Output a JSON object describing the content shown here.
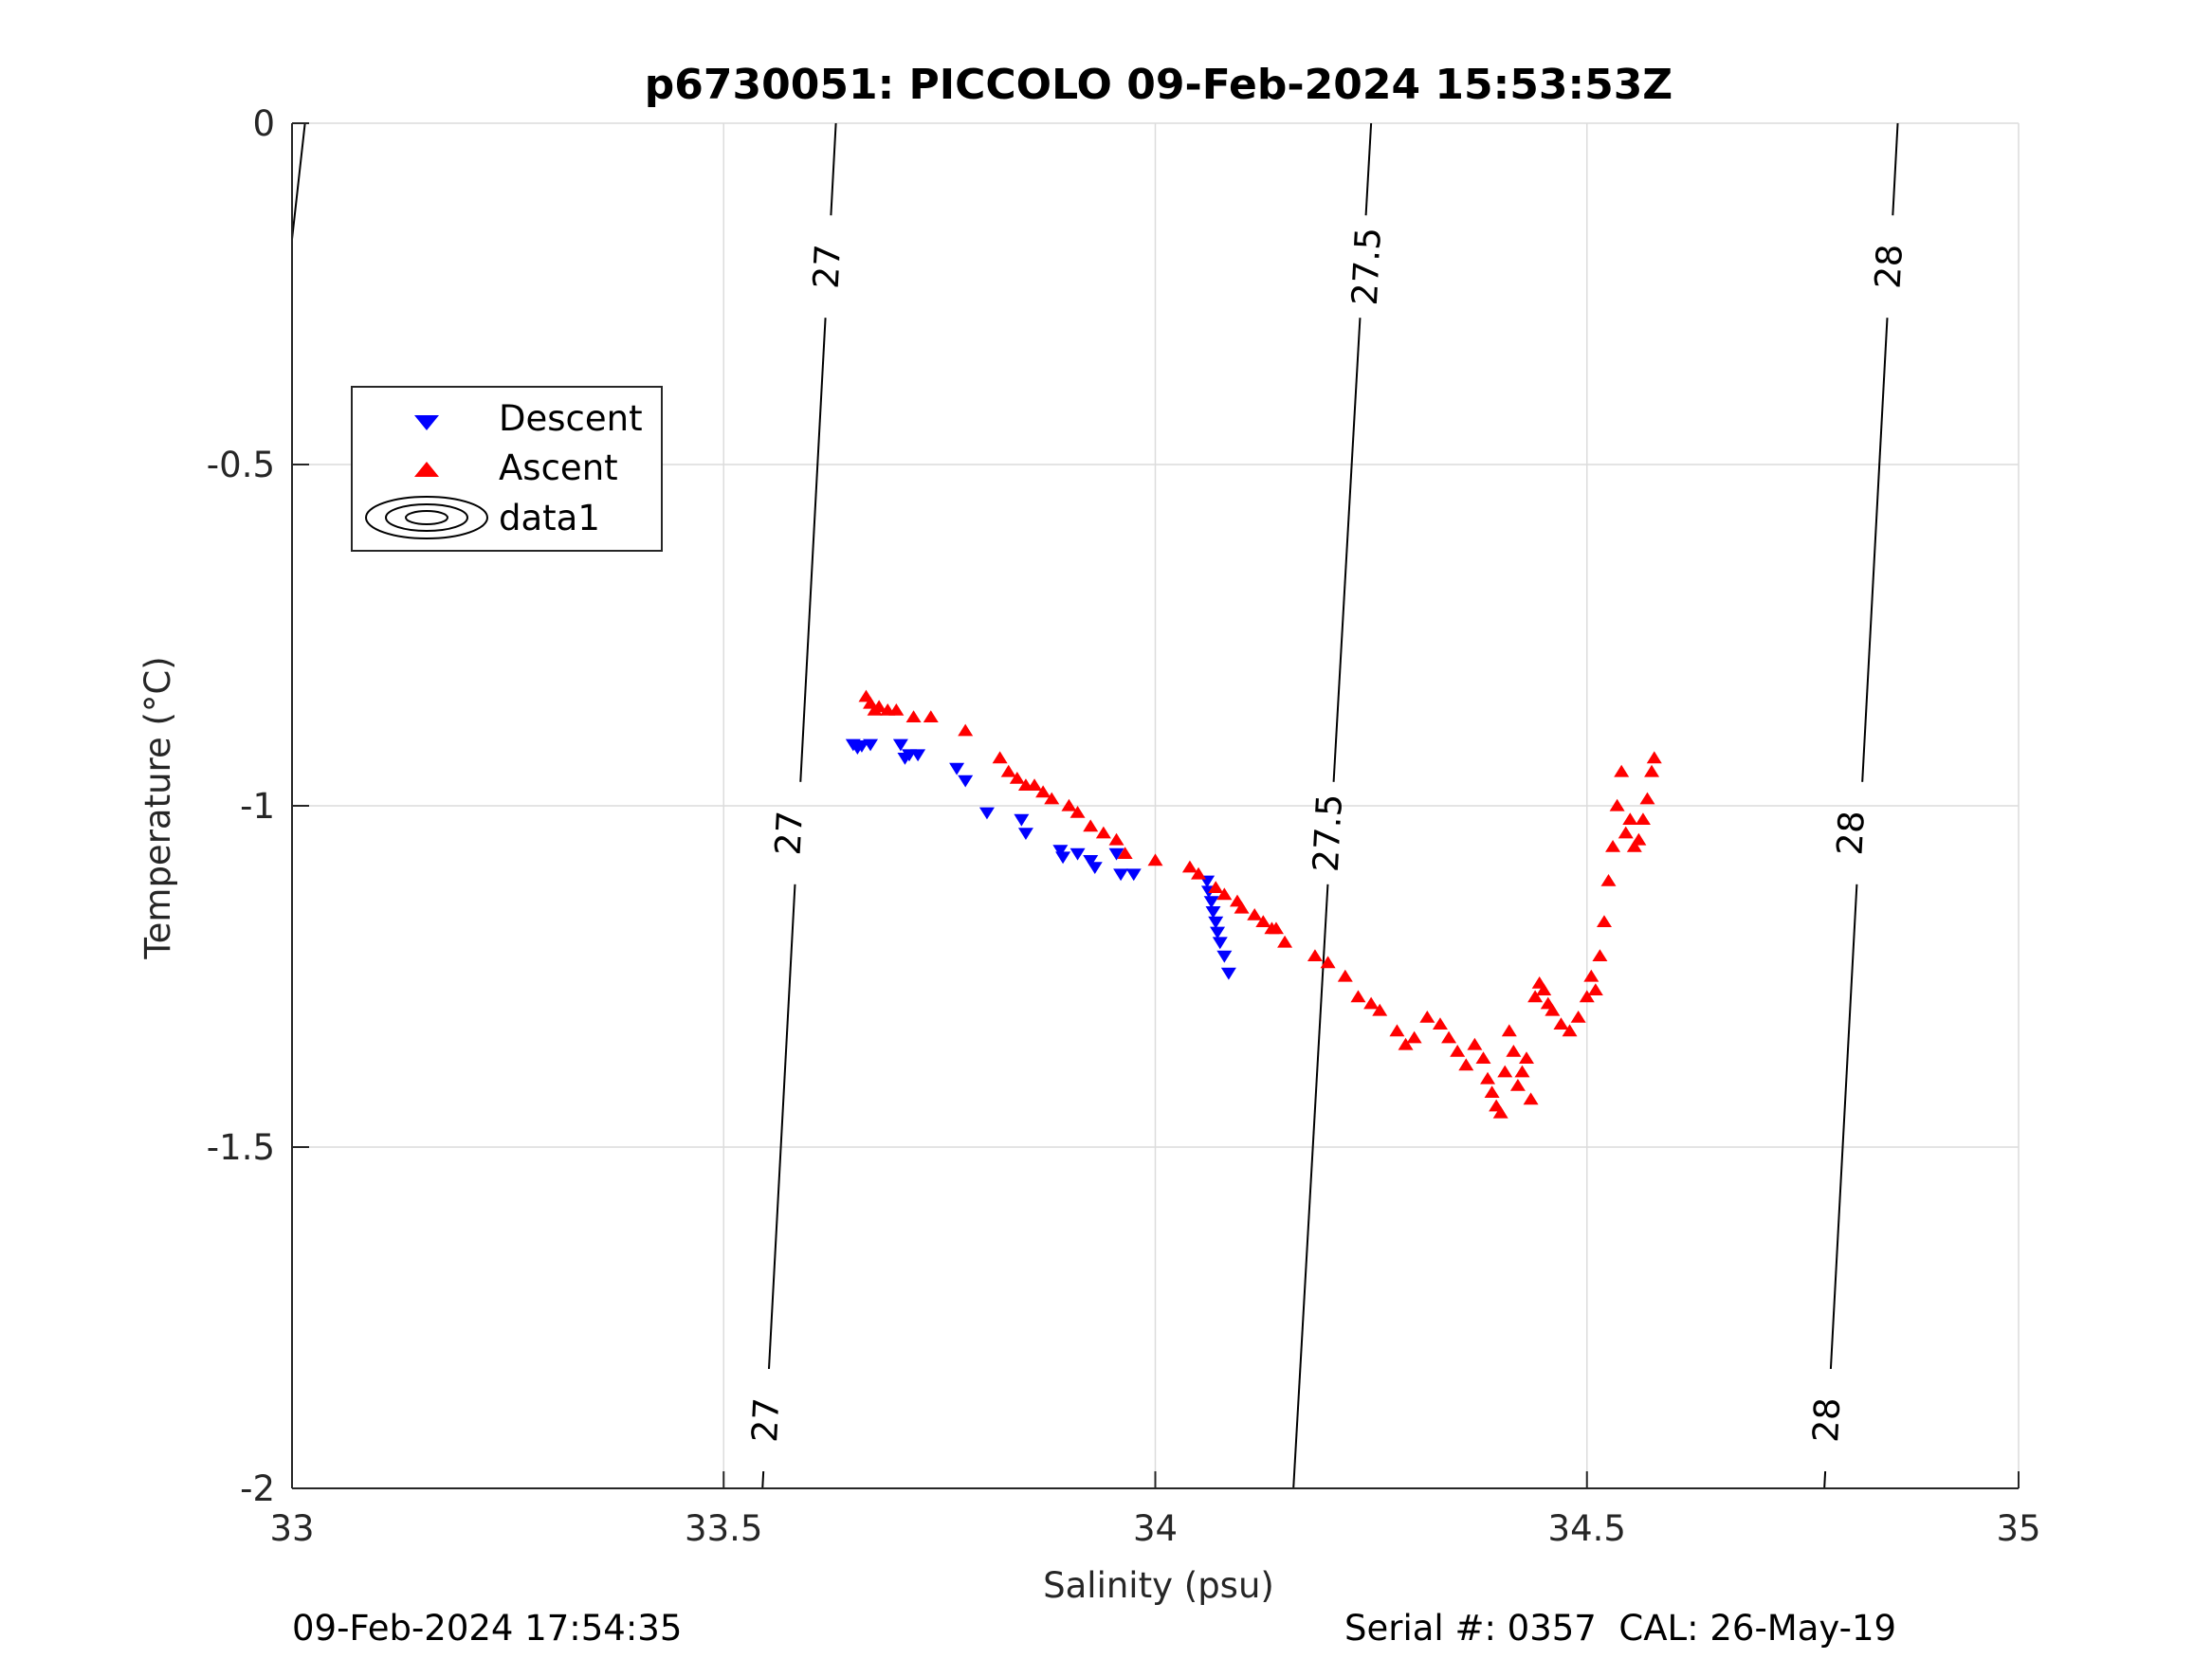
{
  "chart_data": {
    "type": "scatter",
    "title": "p6730051: PICCOLO 09-Feb-2024 15:53:53Z",
    "xlabel": "Salinity (psu)",
    "ylabel": "Temperature (°C)",
    "xlim": [
      33,
      35
    ],
    "ylim": [
      -2,
      0
    ],
    "xticks": [
      "33",
      "33.5",
      "34",
      "34.5",
      "35"
    ],
    "xtick_values": [
      33,
      33.5,
      34,
      34.5,
      35
    ],
    "yticks": [
      "0",
      "-0.5",
      "-1",
      "-1.5",
      "-2"
    ],
    "ytick_values": [
      0,
      -0.5,
      -1,
      -1.5,
      -2
    ],
    "grid": true,
    "legend_position": "upper-left",
    "series": [
      {
        "name": "Descent",
        "marker": "triangle-down",
        "color": "#0000ff",
        "x": [
          33.65,
          33.655,
          33.66,
          33.67,
          33.705,
          33.71,
          33.715,
          33.725,
          33.77,
          33.78,
          33.805,
          33.845,
          33.85,
          33.89,
          33.893,
          33.91,
          33.925,
          33.93,
          33.955,
          33.96,
          33.975,
          34.06,
          34.062,
          34.065,
          34.067,
          34.07,
          34.072,
          34.075,
          34.08,
          34.085
        ],
        "y": [
          -0.91,
          -0.915,
          -0.912,
          -0.91,
          -0.91,
          -0.93,
          -0.925,
          -0.925,
          -0.945,
          -0.963,
          -1.01,
          -1.02,
          -1.04,
          -1.065,
          -1.075,
          -1.07,
          -1.08,
          -1.09,
          -1.07,
          -1.1,
          -1.1,
          -1.11,
          -1.125,
          -1.14,
          -1.155,
          -1.17,
          -1.185,
          -1.2,
          -1.22,
          -1.245
        ]
      },
      {
        "name": "Ascent",
        "marker": "triangle-up",
        "color": "#ff0000",
        "x": [
          33.665,
          33.67,
          33.675,
          33.68,
          33.69,
          33.7,
          33.72,
          33.74,
          33.78,
          33.82,
          33.83,
          33.84,
          33.85,
          33.86,
          33.87,
          33.88,
          33.9,
          33.91,
          33.925,
          33.94,
          33.955,
          33.965,
          34.0,
          34.04,
          34.05,
          34.07,
          34.08,
          34.095,
          34.1,
          34.115,
          34.125,
          34.135,
          34.14,
          34.15,
          34.185,
          34.2,
          34.22,
          34.235,
          34.25,
          34.26,
          34.28,
          34.29,
          34.3,
          34.315,
          34.33,
          34.34,
          34.35,
          34.36,
          34.37,
          34.38,
          34.385,
          34.39,
          34.395,
          34.4,
          34.405,
          34.41,
          34.415,
          34.42,
          34.425,
          34.43,
          34.435,
          34.44,
          34.445,
          34.45,
          34.455,
          34.46,
          34.47,
          34.48,
          34.49,
          34.5,
          34.505,
          34.51,
          34.515,
          34.52,
          34.525,
          34.53,
          34.535,
          34.54,
          34.545,
          34.55,
          34.555,
          34.56,
          34.565,
          34.57,
          34.575,
          34.578
        ],
        "y": [
          -0.84,
          -0.85,
          -0.86,
          -0.855,
          -0.86,
          -0.86,
          -0.87,
          -0.87,
          -0.89,
          -0.93,
          -0.95,
          -0.96,
          -0.97,
          -0.97,
          -0.98,
          -0.99,
          -1.0,
          -1.01,
          -1.03,
          -1.04,
          -1.05,
          -1.07,
          -1.08,
          -1.09,
          -1.1,
          -1.12,
          -1.13,
          -1.14,
          -1.15,
          -1.16,
          -1.17,
          -1.18,
          -1.18,
          -1.2,
          -1.22,
          -1.23,
          -1.25,
          -1.28,
          -1.29,
          -1.3,
          -1.33,
          -1.35,
          -1.34,
          -1.31,
          -1.32,
          -1.34,
          -1.36,
          -1.38,
          -1.35,
          -1.37,
          -1.4,
          -1.42,
          -1.44,
          -1.45,
          -1.39,
          -1.33,
          -1.36,
          -1.41,
          -1.39,
          -1.37,
          -1.43,
          -1.28,
          -1.26,
          -1.27,
          -1.29,
          -1.3,
          -1.32,
          -1.33,
          -1.31,
          -1.28,
          -1.25,
          -1.27,
          -1.22,
          -1.17,
          -1.11,
          -1.06,
          -1.0,
          -0.95,
          -1.04,
          -1.02,
          -1.06,
          -1.05,
          -1.02,
          -0.99,
          -0.95,
          -0.93
        ]
      }
    ],
    "contours": [
      {
        "label": "27",
        "x_at_top": 33.63,
        "x_at_bottom": 33.545,
        "label_positions": [
          {
            "x": 33.622,
            "y": -0.21
          },
          {
            "x": 33.578,
            "y": -1.04
          },
          {
            "x": 33.551,
            "y": -1.9
          }
        ]
      },
      {
        "label": "27.5",
        "x_at_top": 34.25,
        "x_at_bottom": 34.16,
        "label_positions": [
          {
            "x": 34.247,
            "y": -0.21
          },
          {
            "x": 34.202,
            "y": -1.04
          }
        ]
      },
      {
        "label": "28",
        "x_at_top": 34.86,
        "x_at_bottom": 34.775,
        "label_positions": [
          {
            "x": 34.852,
            "y": -0.21
          },
          {
            "x": 34.808,
            "y": -1.04
          },
          {
            "x": 34.78,
            "y": -1.9
          }
        ]
      },
      {
        "label": "",
        "x_at_top": 33.015,
        "x_at_bottom": 33.0,
        "y_bottom": -0.17,
        "label_positions": []
      }
    ],
    "legend": [
      "Descent",
      "Ascent",
      "data1"
    ]
  },
  "footer": {
    "timestamp": "09-Feb-2024 17:54:35",
    "serial": "Serial #: 0357  CAL: 26-May-19"
  }
}
